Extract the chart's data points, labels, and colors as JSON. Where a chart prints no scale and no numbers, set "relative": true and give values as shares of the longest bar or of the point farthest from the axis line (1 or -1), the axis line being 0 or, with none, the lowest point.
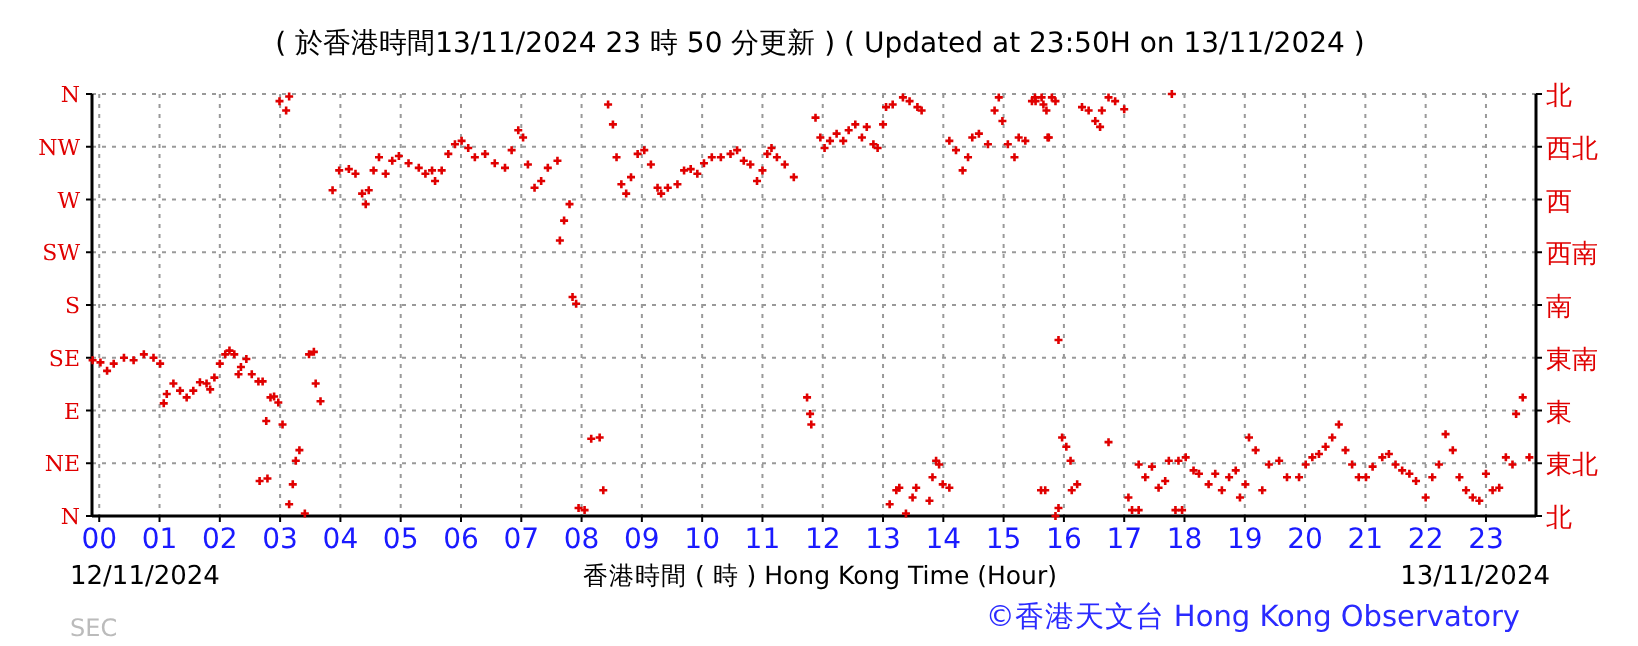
{
  "chart_data": {
    "type": "scatter",
    "title": "( 於香港時間13/11/2024 23 時 50 分更新 ) ( Updated at 23:50H on 13/11/2024 )",
    "xlabel": "香港時間 ( 時 ) Hong Kong Time (Hour)",
    "annotations": [
      "12/11/2024",
      "13/11/2024",
      "SEC",
      "©香港天文台 Hong Kong Observatory"
    ],
    "xlim": [
      -0.12,
      23.83
    ],
    "xticks": [
      {
        "value": 0,
        "label": "00"
      },
      {
        "value": 1,
        "label": "01"
      },
      {
        "value": 2,
        "label": "02"
      },
      {
        "value": 3,
        "label": "03"
      },
      {
        "value": 4,
        "label": "04"
      },
      {
        "value": 5,
        "label": "05"
      },
      {
        "value": 6,
        "label": "06"
      },
      {
        "value": 7,
        "label": "07"
      },
      {
        "value": 8,
        "label": "08"
      },
      {
        "value": 9,
        "label": "09"
      },
      {
        "value": 10,
        "label": "10"
      },
      {
        "value": 11,
        "label": "11"
      },
      {
        "value": 12,
        "label": "12"
      },
      {
        "value": 13,
        "label": "13"
      },
      {
        "value": 14,
        "label": "14"
      },
      {
        "value": 15,
        "label": "15"
      },
      {
        "value": 16,
        "label": "16"
      },
      {
        "value": 17,
        "label": "17"
      },
      {
        "value": 18,
        "label": "18"
      },
      {
        "value": 19,
        "label": "19"
      },
      {
        "value": 20,
        "label": "20"
      },
      {
        "value": 21,
        "label": "21"
      },
      {
        "value": 22,
        "label": "22"
      },
      {
        "value": 23,
        "label": "23"
      }
    ],
    "relative": true,
    "y_categories": [
      "N",
      "NW",
      "W",
      "SW",
      "S",
      "SE",
      "E",
      "NE",
      "N"
    ],
    "y2_categories": [
      "北",
      "西北",
      "西",
      "西南",
      "南",
      "東南",
      "東",
      "東北",
      "北"
    ],
    "grid": true,
    "marker": "cross",
    "series": [
      {
        "color": "#e00000",
        "x": [
          -0.11,
          0.02,
          0.13,
          0.24,
          0.41,
          0.57,
          0.74,
          0.9,
          1.01,
          1.07,
          1.12,
          1.23,
          1.34,
          1.45,
          1.56,
          1.67,
          1.78,
          1.84,
          1.91,
          2.0,
          2.09,
          2.16,
          2.24,
          2.31,
          2.35,
          2.44,
          2.53,
          2.64,
          2.71,
          2.77,
          2.84,
          2.9,
          2.97,
          3.04,
          2.66,
          2.79,
          2.99,
          3.1,
          3.15,
          3.15,
          3.21,
          3.26,
          3.32,
          3.41,
          3.48,
          3.56,
          3.59,
          3.67,
          3.87,
          3.98,
          4.14,
          4.25,
          4.36,
          4.42,
          4.47,
          4.55,
          4.64,
          4.75,
          4.86,
          4.97,
          5.13,
          5.3,
          5.41,
          5.52,
          5.57,
          5.68,
          5.79,
          5.9,
          6.01,
          6.12,
          6.23,
          6.4,
          6.56,
          6.73,
          6.84,
          6.95,
          7.03,
          7.11,
          7.22,
          7.33,
          7.44,
          7.6,
          7.64,
          7.71,
          7.8,
          7.85,
          7.91,
          7.95,
          8.05,
          8.16,
          8.3,
          8.36,
          8.44,
          8.52,
          8.58,
          8.66,
          8.74,
          8.82,
          8.93,
          9.04,
          9.15,
          9.26,
          9.32,
          9.43,
          9.59,
          9.7,
          9.81,
          9.92,
          10.03,
          10.16,
          10.31,
          10.47,
          10.58,
          10.69,
          10.8,
          10.91,
          11.0,
          11.08,
          11.15,
          11.24,
          11.37,
          11.52,
          11.74,
          11.79,
          11.81,
          11.88,
          11.96,
          12.03,
          12.12,
          12.23,
          12.34,
          12.43,
          12.54,
          12.65,
          12.73,
          12.84,
          12.91,
          13.0,
          13.05,
          13.16,
          13.33,
          13.44,
          13.57,
          13.64,
          13.11,
          13.22,
          13.27,
          13.38,
          13.49,
          13.55,
          13.77,
          13.82,
          13.88,
          13.93,
          13.99,
          14.1,
          14.1,
          14.21,
          14.32,
          14.41,
          14.48,
          14.59,
          14.74,
          14.85,
          14.92,
          14.98,
          15.07,
          15.18,
          15.25,
          15.36,
          15.53,
          15.66,
          15.73,
          15.62,
          15.47,
          15.52,
          15.63,
          15.71,
          15.75,
          15.8,
          15.86,
          15.91,
          15.69,
          15.86,
          15.91,
          15.97,
          16.04,
          16.11,
          16.13,
          16.22,
          16.3,
          16.41,
          16.52,
          16.6,
          16.63,
          16.74,
          16.85,
          17.0,
          16.74,
          17.07,
          17.13,
          17.24,
          17.24,
          17.35,
          17.46,
          17.57,
          17.68,
          17.74,
          17.79,
          17.85,
          17.96,
          17.9,
          18.02,
          18.15,
          18.24,
          18.4,
          18.51,
          18.62,
          18.74,
          18.85,
          18.92,
          19.01,
          19.07,
          19.18,
          19.29,
          19.4,
          19.57,
          19.7,
          19.9,
          20.01,
          20.12,
          20.23,
          20.34,
          20.45,
          20.56,
          20.67,
          20.78,
          20.89,
          21.01,
          21.12,
          21.28,
          21.39,
          21.5,
          21.61,
          21.73,
          21.84,
          22.0,
          22.11,
          22.22,
          22.33,
          22.45,
          22.56,
          22.67,
          22.78,
          22.89,
          23.0,
          23.11,
          23.22,
          23.33,
          23.44,
          23.5,
          23.61,
          23.72
        ],
        "values": [
          0.369,
          0.364,
          0.344,
          0.361,
          0.375,
          0.369,
          0.383,
          0.375,
          0.361,
          0.267,
          0.289,
          0.314,
          0.297,
          0.281,
          0.297,
          0.317,
          0.314,
          0.3,
          0.328,
          0.361,
          0.383,
          0.392,
          0.383,
          0.336,
          0.353,
          0.372,
          0.336,
          0.319,
          0.319,
          0.225,
          0.281,
          0.283,
          0.269,
          0.217,
          0.083,
          0.089,
          0.983,
          0.961,
          0.994,
          0.028,
          0.075,
          0.131,
          0.156,
          0.006,
          0.383,
          0.389,
          0.314,
          0.272,
          0.772,
          0.819,
          0.822,
          0.811,
          0.764,
          0.739,
          0.772,
          0.819,
          0.85,
          0.811,
          0.842,
          0.853,
          0.836,
          0.825,
          0.811,
          0.819,
          0.794,
          0.819,
          0.858,
          0.881,
          0.889,
          0.872,
          0.85,
          0.858,
          0.836,
          0.825,
          0.867,
          0.914,
          0.897,
          0.833,
          0.778,
          0.794,
          0.825,
          0.842,
          0.653,
          0.7,
          0.739,
          0.519,
          0.503,
          0.019,
          0.014,
          0.183,
          0.186,
          0.061,
          0.975,
          0.928,
          0.85,
          0.786,
          0.764,
          0.803,
          0.858,
          0.867,
          0.833,
          0.778,
          0.764,
          0.778,
          0.786,
          0.819,
          0.822,
          0.811,
          0.836,
          0.85,
          0.85,
          0.858,
          0.867,
          0.842,
          0.833,
          0.794,
          0.819,
          0.858,
          0.872,
          0.85,
          0.833,
          0.803,
          0.281,
          0.242,
          0.217,
          0.944,
          0.897,
          0.872,
          0.889,
          0.906,
          0.889,
          0.914,
          0.928,
          0.897,
          0.922,
          0.881,
          0.872,
          0.928,
          0.969,
          0.975,
          0.992,
          0.983,
          0.969,
          0.961,
          0.028,
          0.061,
          0.067,
          0.006,
          0.044,
          0.067,
          0.036,
          0.092,
          0.131,
          0.122,
          0.075,
          0.067,
          0.889,
          0.867,
          0.819,
          0.85,
          0.897,
          0.906,
          0.881,
          0.961,
          0.992,
          0.936,
          0.881,
          0.85,
          0.897,
          0.889,
          0.983,
          0.975,
          0.897,
          0.061,
          0.983,
          0.992,
          0.992,
          0.961,
          0.897,
          0.992,
          0.983,
          0.417,
          0.061,
          0,
          0.019,
          0.186,
          0.164,
          0.131,
          0.061,
          0.075,
          0.969,
          0.961,
          0.936,
          0.922,
          0.961,
          0.992,
          0.983,
          0.964,
          0.175,
          0.044,
          0.014,
          0.014,
          0.122,
          0.092,
          0.117,
          0.067,
          0.083,
          0.131,
          1,
          0.014,
          0.014,
          0.131,
          0.139,
          0.108,
          0.1,
          0.075,
          0.1,
          0.061,
          0.092,
          0.108,
          0.044,
          0.075,
          0.186,
          0.156,
          0.061,
          0.122,
          0.131,
          0.092,
          0.092,
          0.122,
          0.139,
          0.147,
          0.164,
          0.186,
          0.217,
          0.156,
          0.122,
          0.092,
          0.092,
          0.117,
          0.139,
          0.147,
          0.122,
          0.108,
          0.1,
          0.083,
          0.044,
          0.092,
          0.122,
          0.194,
          0.156,
          0.092,
          0.061,
          0.044,
          0.036,
          0.1,
          0.061,
          0.067,
          0.139,
          0.122,
          0.242,
          0.281,
          0.139
        ]
      }
    ]
  }
}
